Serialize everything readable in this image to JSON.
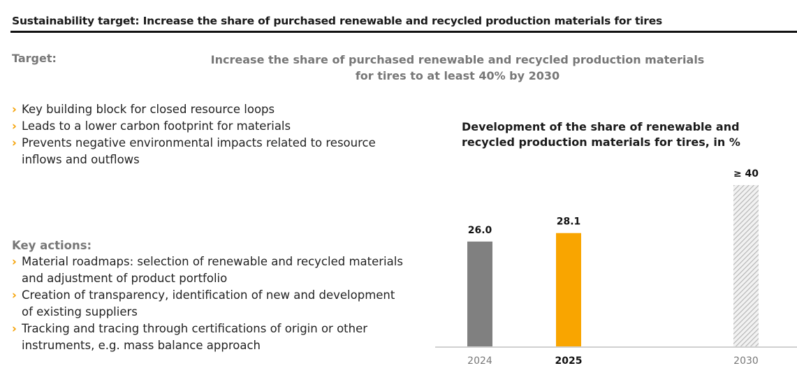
{
  "header": {
    "title": "Sustainability target: Increase the share of purchased renewable and recycled production materials for tires"
  },
  "target": {
    "label": "Target:",
    "line1": "Increase the share of purchased renewable and recycled production materials",
    "line2": "for tires to at least 40% by 2030"
  },
  "benefits": [
    "Key building block for closed resource loops",
    "Leads to a lower carbon footprint for materials",
    "Prevents negative environmental impacts related to resource inflows and outflows"
  ],
  "key_actions": {
    "heading": "Key actions:",
    "items": [
      "Material roadmaps: selection of renewable and recycled materials and adjustment of product portfolio",
      "Creation of transparency, identification of new and development of existing suppliers",
      "Tracking and tracing through certifications of origin or other instruments, e.g. mass balance approach"
    ]
  },
  "chart_data": {
    "type": "bar",
    "title": "Development of the share of renewable and recycled production materials for tires, in %",
    "categories": [
      "2024",
      "2025",
      "2030"
    ],
    "values": [
      26.0,
      28.1,
      40
    ],
    "data_labels": [
      "26.0",
      "28.1",
      "≥  40"
    ],
    "colors": [
      "#808080",
      "#f9a500",
      "hatched"
    ],
    "highlight_category": "2025",
    "ylim": [
      0,
      40
    ],
    "grid": false
  }
}
